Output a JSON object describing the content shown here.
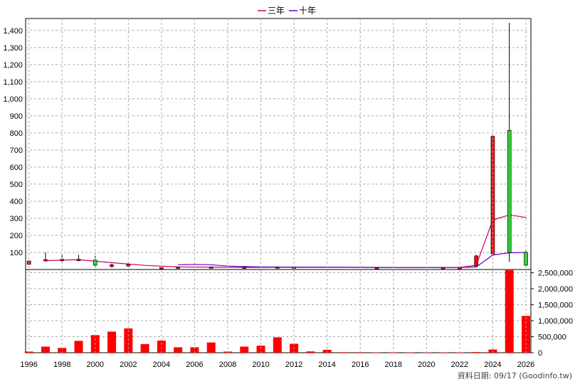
{
  "legend": [
    {
      "label": "三年",
      "color": "#cc0066"
    },
    {
      "label": "十年",
      "color": "#6600cc"
    }
  ],
  "source_note": "資料日期: 09/17  (Goodinfo.tw)",
  "colors": {
    "up_candle": "#ff0000",
    "down_candle": "#33cc33",
    "volume_bar": "#ff0000",
    "grid": "#aaaaaa"
  },
  "chart_data": [
    {
      "type": "candlestick",
      "title": "",
      "grid": true,
      "legend_position": "top-center",
      "x_ticks": [
        "1996",
        "1998",
        "2000",
        "2002",
        "2004",
        "2006",
        "2008",
        "2010",
        "2012",
        "2014",
        "2016",
        "2018",
        "2020",
        "2022",
        "2024",
        "2026"
      ],
      "xlim": [
        1995.8,
        2026.3
      ],
      "y_ticks": [
        "100",
        "200",
        "300",
        "400",
        "500",
        "600",
        "700",
        "800",
        "900",
        "1,000",
        "1,100",
        "1,200",
        "1,300",
        "1,400"
      ],
      "ylim": [
        0,
        1470
      ],
      "candles": [
        {
          "year": 1996,
          "open": 30,
          "close": 50,
          "high": 50,
          "low": 30,
          "dir": "up"
        },
        {
          "year": 1997,
          "open": 50,
          "close": 58,
          "high": 100,
          "low": 48,
          "dir": "up"
        },
        {
          "year": 1998,
          "open": 55,
          "close": 60,
          "high": 88,
          "low": 45,
          "dir": "up"
        },
        {
          "year": 1999,
          "open": 55,
          "close": 60,
          "high": 85,
          "low": 48,
          "dir": "up"
        },
        {
          "year": 2000,
          "open": 55,
          "close": 25,
          "high": 80,
          "low": 18,
          "dir": "down"
        },
        {
          "year": 2001,
          "open": 18,
          "close": 28,
          "high": 35,
          "low": 10,
          "dir": "up"
        },
        {
          "year": 2002,
          "open": 20,
          "close": 32,
          "high": 45,
          "low": 12,
          "dir": "up"
        },
        {
          "year": 2004,
          "open": 10,
          "close": 12,
          "high": 14,
          "low": 8,
          "dir": "up"
        },
        {
          "year": 2005,
          "open": 12,
          "close": 14,
          "high": 16,
          "low": 10,
          "dir": "up"
        },
        {
          "year": 2007,
          "open": 13,
          "close": 15,
          "high": 18,
          "low": 10,
          "dir": "up"
        },
        {
          "year": 2009,
          "open": 12,
          "close": 14,
          "high": 17,
          "low": 9,
          "dir": "up"
        },
        {
          "year": 2011,
          "open": 13,
          "close": 15,
          "high": 18,
          "low": 11,
          "dir": "up"
        },
        {
          "year": 2012,
          "open": 13,
          "close": 15,
          "high": 18,
          "low": 11,
          "dir": "up"
        },
        {
          "year": 2017,
          "open": 11,
          "close": 12,
          "high": 14,
          "low": 9,
          "dir": "up"
        },
        {
          "year": 2021,
          "open": 11,
          "close": 12,
          "high": 14,
          "low": 9,
          "dir": "up"
        },
        {
          "year": 2022,
          "open": 11,
          "close": 12,
          "high": 14,
          "low": 9,
          "dir": "up"
        },
        {
          "year": 2023,
          "open": 20,
          "close": 80,
          "high": 85,
          "low": 15,
          "dir": "up"
        },
        {
          "year": 2024,
          "open": 90,
          "close": 780,
          "high": 790,
          "low": 80,
          "dir": "up"
        },
        {
          "year": 2025,
          "open": 815,
          "close": 100,
          "high": 1445,
          "low": 45,
          "dir": "down"
        },
        {
          "year": 2026,
          "open": 100,
          "close": 25,
          "high": 110,
          "low": 20,
          "dir": "down"
        }
      ],
      "series": [
        {
          "name": "三年",
          "color": "#cc0066",
          "x": [
            1997,
            1999,
            2001,
            2003,
            2005,
            2007,
            2009,
            2011,
            2013,
            2015,
            2017,
            2019,
            2021,
            2022,
            2023,
            2024,
            2025,
            2026
          ],
          "y": [
            52,
            58,
            40,
            24,
            15,
            14,
            12,
            13,
            13,
            13,
            12,
            12,
            12,
            12,
            25,
            290,
            320,
            305
          ]
        },
        {
          "name": "十年",
          "color": "#6600cc",
          "x": [
            2005,
            2006,
            2007,
            2008,
            2010,
            2012,
            2014,
            2016,
            2018,
            2020,
            2022,
            2023,
            2024,
            2025,
            2026
          ],
          "y": [
            28,
            30,
            28,
            20,
            15,
            14,
            14,
            13,
            12,
            12,
            12,
            15,
            85,
            98,
            100
          ]
        }
      ]
    },
    {
      "type": "bar",
      "y_ticks": [
        "0",
        "500,000",
        "1,000,000",
        "1,500,000",
        "2,000,000",
        "2,500,000"
      ],
      "ylim": [
        0,
        2600000
      ],
      "x": [
        1996,
        1997,
        1998,
        1999,
        2000,
        2001,
        2002,
        2003,
        2004,
        2005,
        2006,
        2007,
        2008,
        2009,
        2010,
        2011,
        2012,
        2013,
        2014,
        2015,
        2016,
        2017,
        2018,
        2019,
        2020,
        2021,
        2022,
        2023,
        2024,
        2025,
        2026
      ],
      "values": [
        35000,
        190000,
        150000,
        370000,
        550000,
        660000,
        760000,
        270000,
        380000,
        170000,
        170000,
        320000,
        35000,
        190000,
        220000,
        480000,
        280000,
        40000,
        90000,
        15000,
        15000,
        10000,
        12000,
        10000,
        10000,
        10000,
        12000,
        20000,
        100000,
        2580000,
        1150000
      ]
    }
  ]
}
